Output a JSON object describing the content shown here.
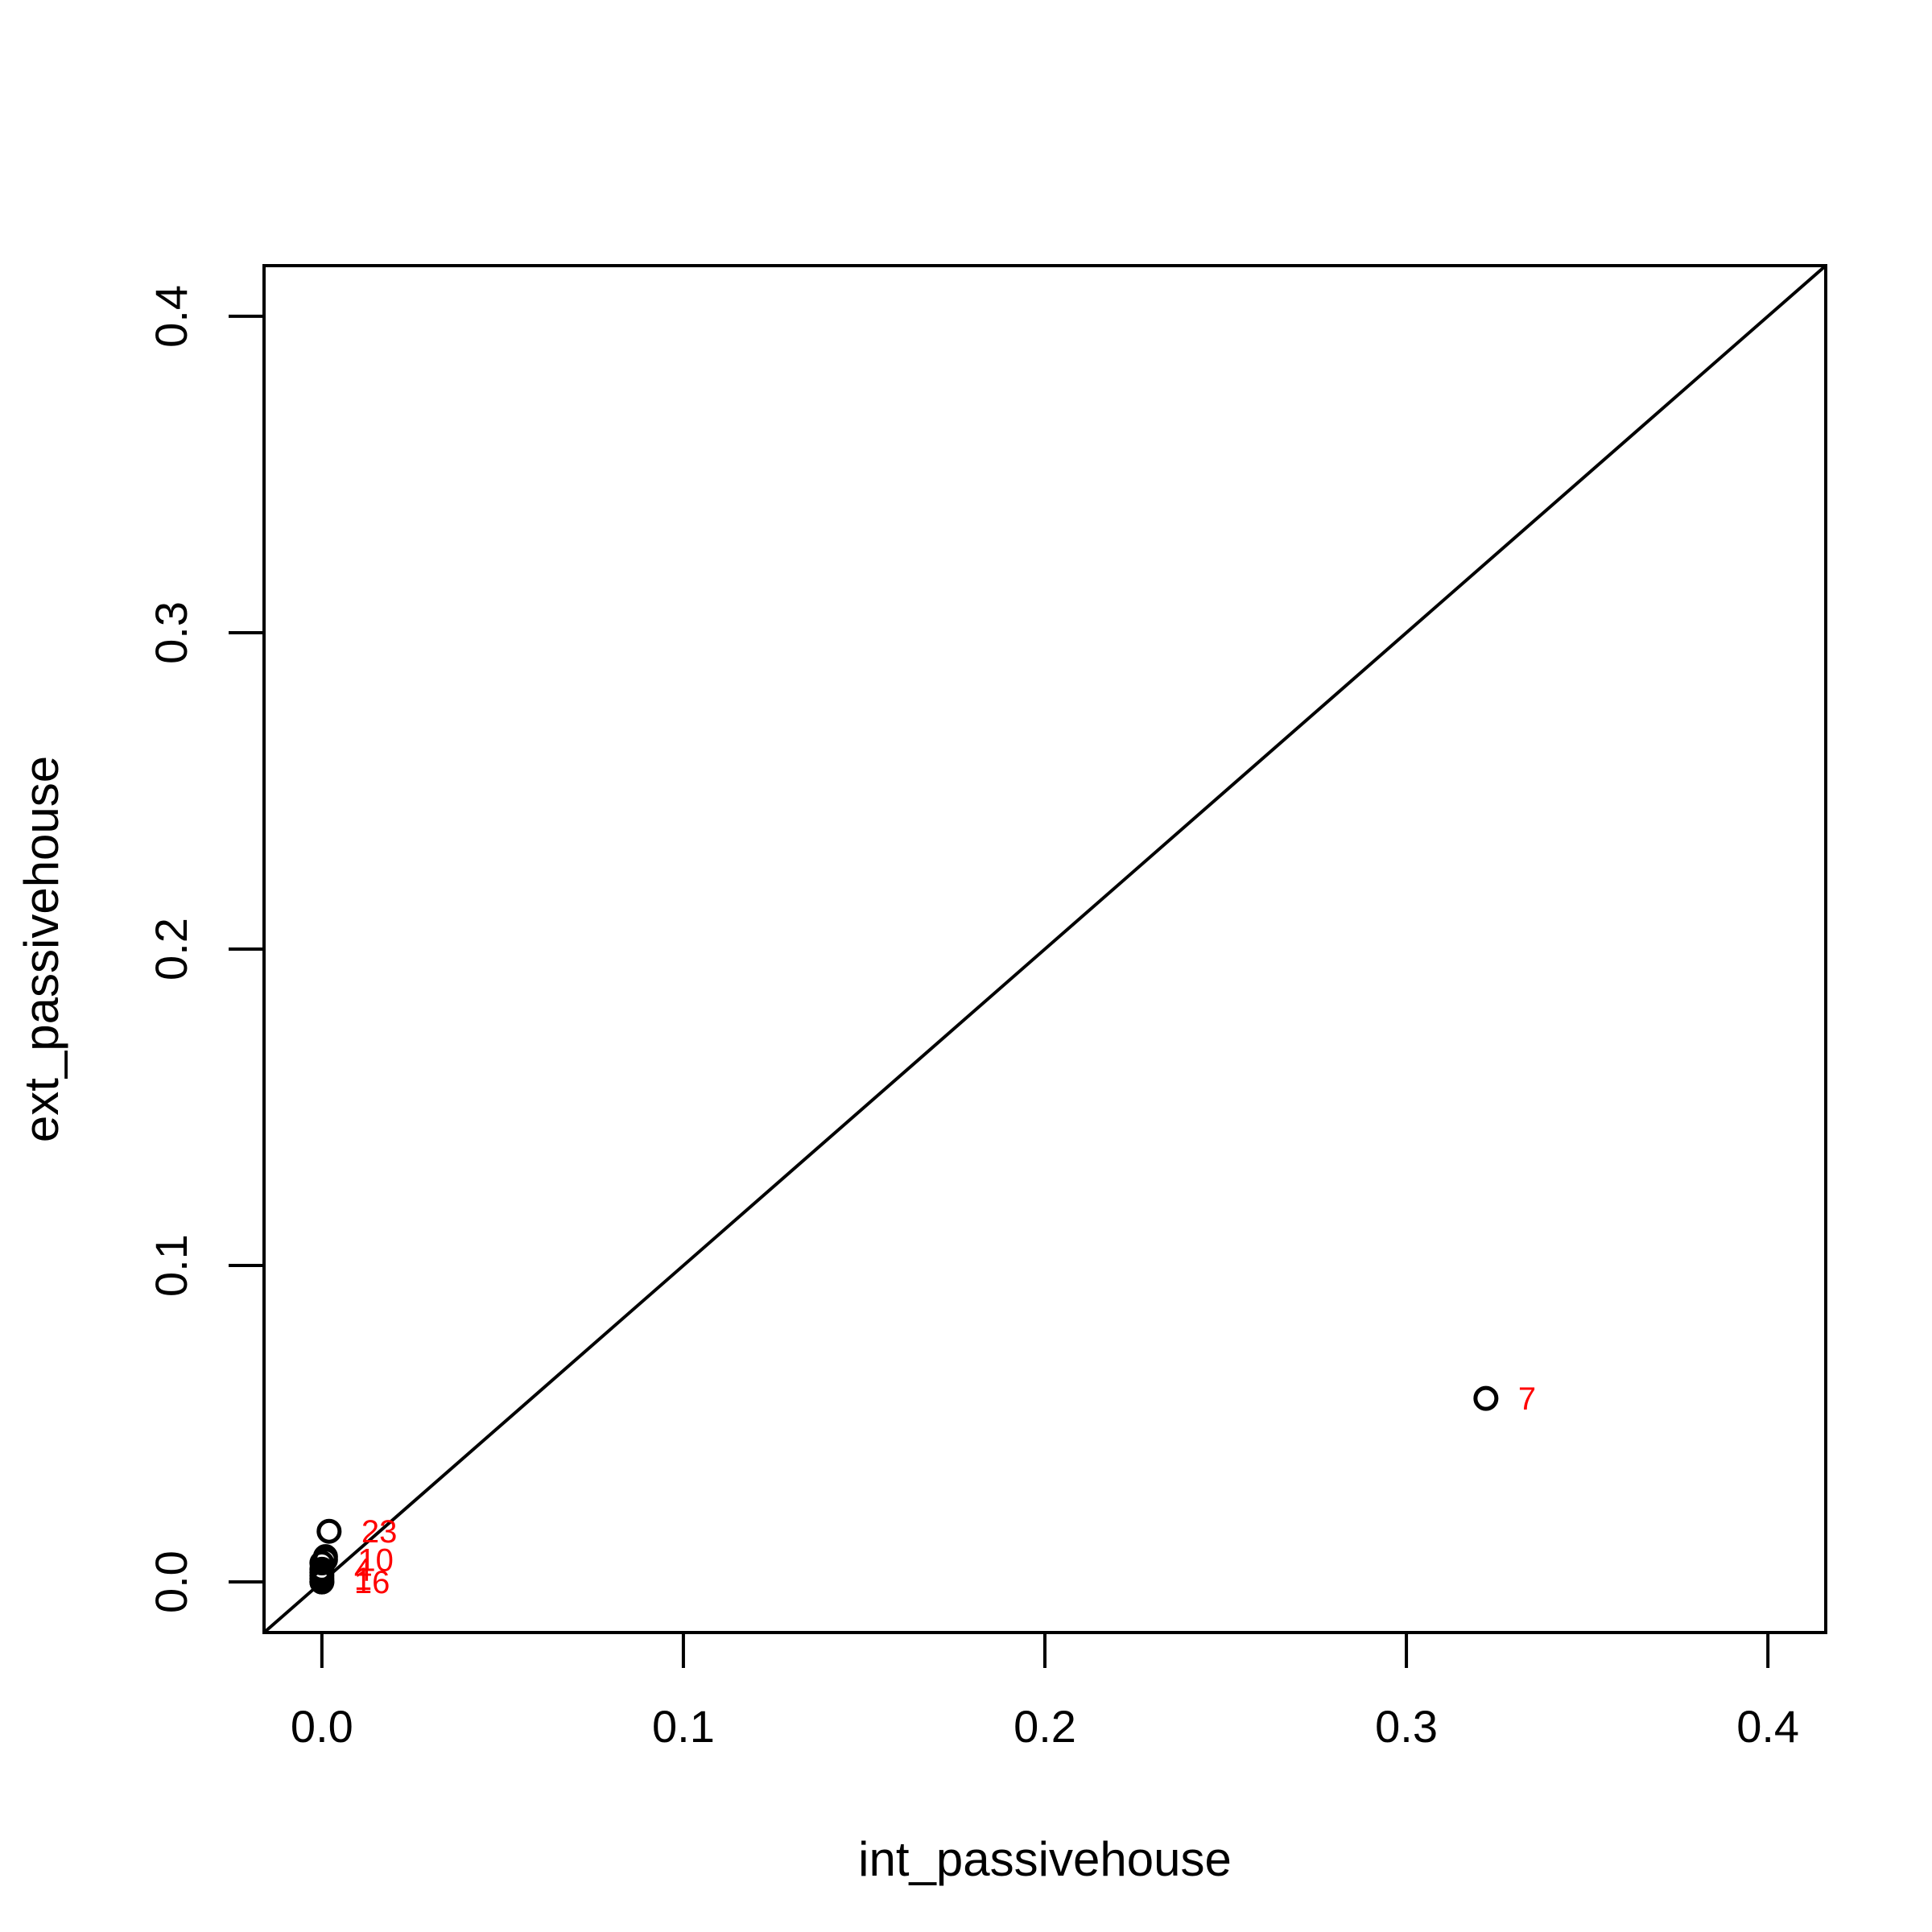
{
  "chart_data": {
    "type": "scatter",
    "xlabel": "int_passivehouse",
    "ylabel": "ext_passivehouse",
    "xlim": [
      -0.016,
      0.416
    ],
    "ylim": [
      -0.016,
      0.416
    ],
    "xticks": [
      0.0,
      0.1,
      0.2,
      0.3,
      0.4
    ],
    "yticks": [
      0.0,
      0.1,
      0.2,
      0.3,
      0.4
    ],
    "xtick_labels": [
      "0.0",
      "0.1",
      "0.2",
      "0.3",
      "0.4"
    ],
    "ytick_labels": [
      "0.0",
      "0.1",
      "0.2",
      "0.3",
      "0.4"
    ],
    "reference_line": {
      "type": "identity",
      "slope": 1,
      "intercept": 0
    },
    "grid": false,
    "legend": "none",
    "point_color": "#000000",
    "label_color": "#ff0000",
    "line_color": "#000000",
    "points": [
      {
        "x": 0.322,
        "y": 0.058
      },
      {
        "x": 0.002,
        "y": 0.016
      },
      {
        "x": 0.001,
        "y": 0.008
      },
      {
        "x": 0.001,
        "y": 0.007
      },
      {
        "x": 0.0,
        "y": 0.006
      },
      {
        "x": 0.0,
        "y": 0.004
      },
      {
        "x": 0.0,
        "y": 0.003
      },
      {
        "x": 0.0,
        "y": 0.002
      },
      {
        "x": 0.0,
        "y": 0.001
      },
      {
        "x": 0.0,
        "y": 0.0
      },
      {
        "x": 0.0,
        "y": 0.0
      }
    ],
    "point_labels": [
      {
        "text": "7",
        "x": 0.322,
        "y": 0.058
      },
      {
        "text": "23",
        "x": 0.002,
        "y": 0.016
      },
      {
        "text": "10",
        "x": 0.001,
        "y": 0.007
      },
      {
        "text": "4",
        "x": 0.0,
        "y": 0.004
      },
      {
        "text": "1",
        "x": 0.0,
        "y": 0.001
      },
      {
        "text": "16",
        "x": 0.0,
        "y": 0.0
      }
    ]
  }
}
